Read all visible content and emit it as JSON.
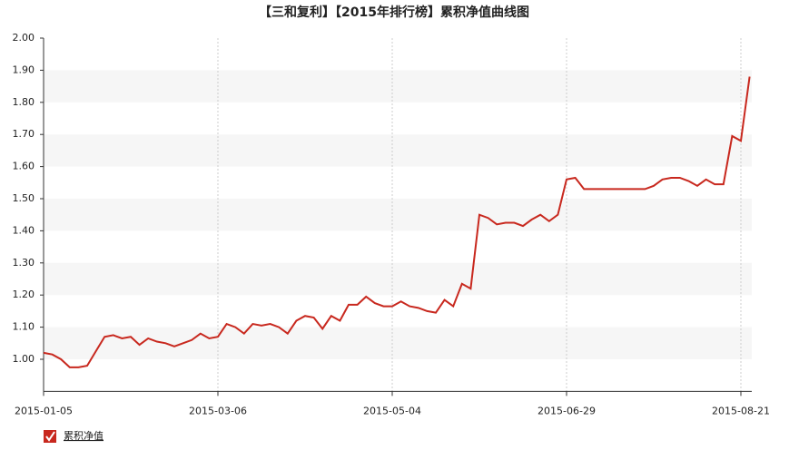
{
  "chart_data": {
    "type": "line",
    "title": "【三和复利】【2015年排行榜】累积净值曲线图",
    "categories": [
      "2015-01-05",
      null,
      null,
      null,
      null,
      null,
      null,
      null,
      null,
      null,
      null,
      null,
      null,
      null,
      null,
      null,
      null,
      null,
      null,
      null,
      "2015-03-06",
      null,
      null,
      null,
      null,
      null,
      null,
      null,
      null,
      null,
      null,
      null,
      null,
      null,
      null,
      null,
      null,
      null,
      null,
      null,
      "2015-05-04",
      null,
      null,
      null,
      null,
      null,
      null,
      null,
      null,
      null,
      null,
      null,
      null,
      null,
      null,
      null,
      null,
      null,
      null,
      null,
      "2015-06-29",
      null,
      null,
      null,
      null,
      null,
      null,
      null,
      null,
      null,
      null,
      null,
      null,
      null,
      null,
      null,
      null,
      null,
      null,
      null,
      "2015-08-21",
      null
    ],
    "series": [
      {
        "name": "累积净值",
        "color": "#c8281e",
        "values": [
          1.02,
          1.015,
          1.0,
          0.975,
          0.975,
          0.98,
          1.025,
          1.07,
          1.075,
          1.065,
          1.07,
          1.045,
          1.065,
          1.055,
          1.05,
          1.04,
          1.05,
          1.06,
          1.08,
          1.065,
          1.07,
          1.11,
          1.1,
          1.08,
          1.11,
          1.105,
          1.11,
          1.1,
          1.08,
          1.12,
          1.135,
          1.13,
          1.095,
          1.135,
          1.12,
          1.17,
          1.17,
          1.195,
          1.175,
          1.165,
          1.165,
          1.18,
          1.165,
          1.16,
          1.15,
          1.145,
          1.185,
          1.165,
          1.235,
          1.22,
          1.45,
          1.44,
          1.42,
          1.425,
          1.425,
          1.415,
          1.435,
          1.45,
          1.43,
          1.45,
          1.56,
          1.565,
          1.53,
          1.53,
          1.53,
          1.53,
          1.53,
          1.53,
          1.53,
          1.53,
          1.54,
          1.56,
          1.565,
          1.565,
          1.555,
          1.54,
          1.56,
          1.545,
          1.545,
          1.695,
          1.68,
          1.88
        ]
      }
    ],
    "ylim": [
      0.9,
      2.0
    ],
    "yticks": [
      {
        "value": 1.0,
        "label": "1.00"
      },
      {
        "value": 1.1,
        "label": "1.10"
      },
      {
        "value": 1.2,
        "label": "1.20"
      },
      {
        "value": 1.3,
        "label": "1.30"
      },
      {
        "value": 1.4,
        "label": "1.40"
      },
      {
        "value": 1.5,
        "label": "1.50"
      },
      {
        "value": 1.6,
        "label": "1.60"
      },
      {
        "value": 1.7,
        "label": "1.70"
      },
      {
        "value": 1.8,
        "label": "1.80"
      },
      {
        "value": 1.9,
        "label": "1.90"
      },
      {
        "value": 2.0,
        "label": "2.00"
      }
    ],
    "grid": true,
    "legend": "bottom-left"
  }
}
